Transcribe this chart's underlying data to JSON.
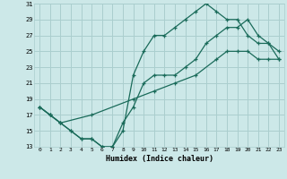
{
  "xlabel": "Humidex (Indice chaleur)",
  "background_color": "#cce8e8",
  "grid_color": "#aacece",
  "line_color": "#1a6b5a",
  "xlim": [
    -0.5,
    23.5
  ],
  "ylim": [
    13,
    31
  ],
  "xticks": [
    0,
    1,
    2,
    3,
    4,
    5,
    6,
    7,
    8,
    9,
    10,
    11,
    12,
    13,
    14,
    15,
    16,
    17,
    18,
    19,
    20,
    21,
    22,
    23
  ],
  "yticks": [
    13,
    15,
    17,
    19,
    21,
    23,
    25,
    27,
    29,
    31
  ],
  "series1_x": [
    0,
    1,
    2,
    3,
    4,
    5,
    6,
    7,
    8,
    9,
    10,
    11,
    12,
    13,
    14,
    15,
    16,
    17,
    18,
    19,
    20,
    21,
    22,
    23
  ],
  "series1_y": [
    18,
    17,
    16,
    15,
    14,
    14,
    13,
    13,
    15,
    22,
    25,
    27,
    27,
    28,
    29,
    30,
    31,
    30,
    29,
    29,
    27,
    26,
    26,
    25
  ],
  "series2_x": [
    0,
    1,
    2,
    5,
    9,
    11,
    13,
    15,
    17,
    18,
    19,
    20,
    21,
    22,
    23
  ],
  "series2_y": [
    18,
    17,
    16,
    17,
    19,
    20,
    21,
    22,
    24,
    25,
    25,
    25,
    24,
    24,
    24
  ],
  "series3_x": [
    0,
    1,
    2,
    3,
    4,
    5,
    6,
    7,
    8,
    9,
    10,
    11,
    12,
    13,
    14,
    15,
    16,
    17,
    18,
    19,
    20,
    21,
    22,
    23
  ],
  "series3_y": [
    18,
    17,
    16,
    15,
    14,
    14,
    13,
    13,
    16,
    18,
    21,
    22,
    22,
    22,
    23,
    24,
    26,
    27,
    28,
    28,
    29,
    27,
    26,
    24
  ]
}
